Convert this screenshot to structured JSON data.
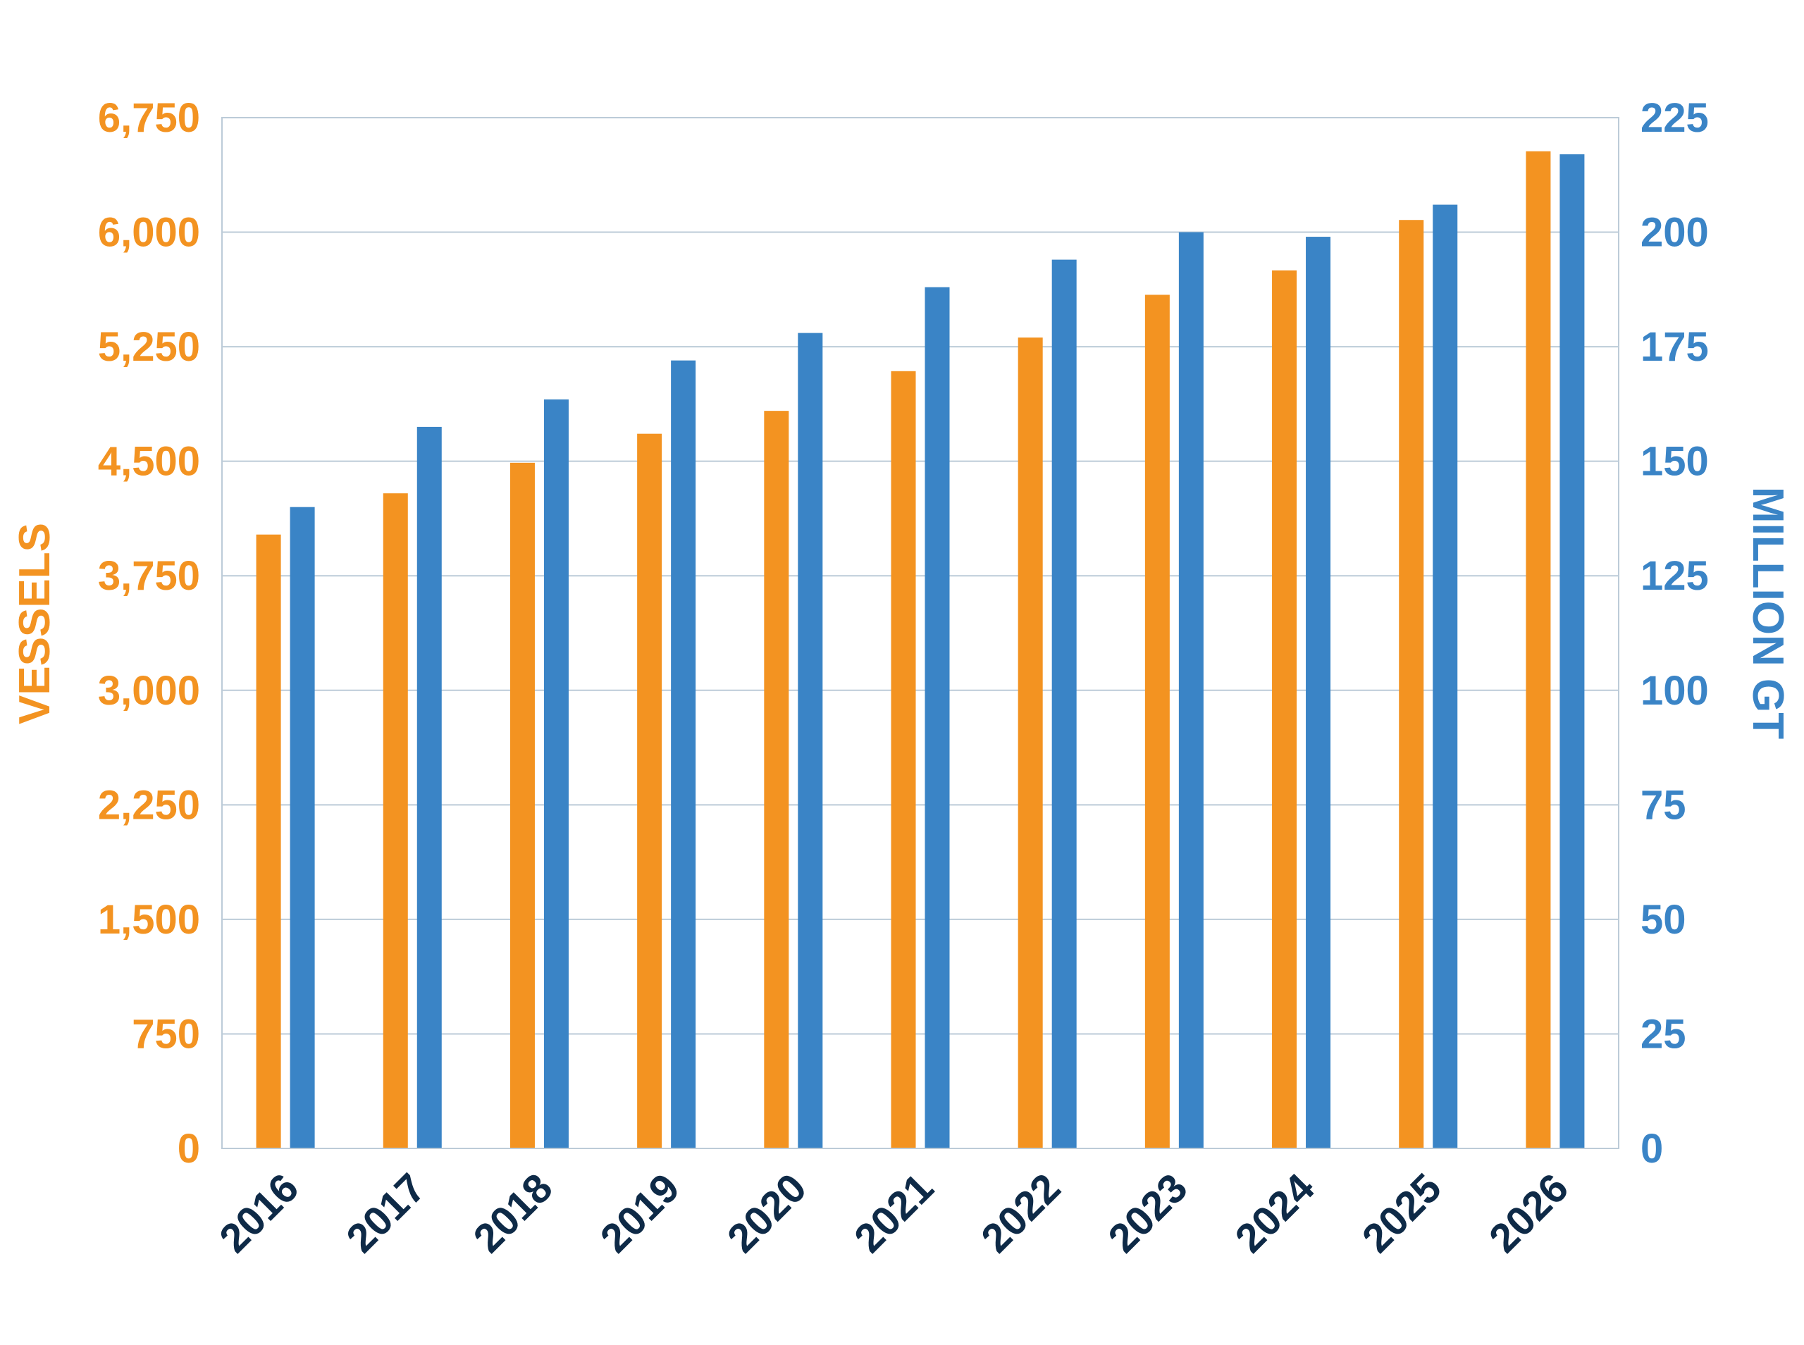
{
  "chart_data": {
    "type": "bar",
    "title": "",
    "categories": [
      "2016",
      "2017",
      "2018",
      "2019",
      "2020",
      "2021",
      "2022",
      "2023",
      "2024",
      "2025",
      "2026"
    ],
    "series": [
      {
        "name": "",
        "axis": "left",
        "color": "#F39321",
        "values": [
          4020,
          4290,
          4490,
          4680,
          4830,
          5090,
          5310,
          5590,
          5750,
          6080,
          6530
        ]
      },
      {
        "name": "",
        "axis": "right",
        "color": "#3A84C6",
        "values": [
          140,
          157.5,
          163.5,
          172,
          178,
          188,
          194,
          200,
          199,
          206,
          217
        ]
      }
    ],
    "y_left": {
      "label": "VESSELS",
      "color": "#F39321",
      "range": [
        0,
        6750
      ],
      "ticks": [
        "0",
        "750",
        "1,500",
        "2,250",
        "3,000",
        "3,750",
        "4,500",
        "5,250",
        "6,000",
        "6,750"
      ]
    },
    "y_right": {
      "label": "MILLION GT",
      "color": "#3A84C6",
      "range": [
        0,
        225
      ],
      "ticks": [
        "0",
        "25",
        "50",
        "75",
        "100",
        "125",
        "150",
        "175",
        "200",
        "225"
      ]
    },
    "x_tick_color": "#0E2A47",
    "grid": true,
    "grid_color": "#BCCBD8",
    "legend": "none"
  }
}
